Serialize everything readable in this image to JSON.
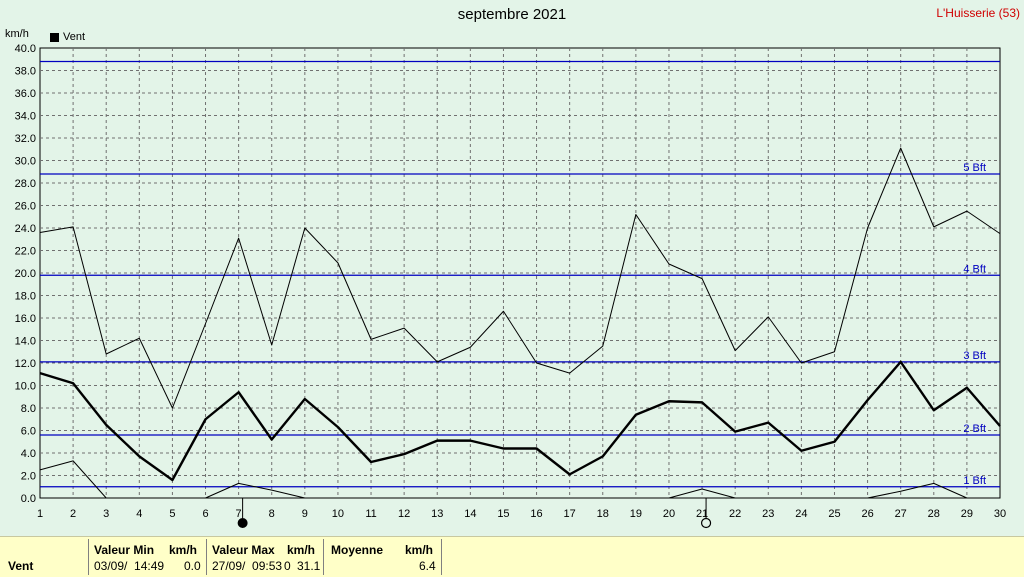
{
  "title": "septembre 2021",
  "station": "L'Huisserie (53)",
  "unit_label": "km/h",
  "legend_label": "Vent",
  "chart_data": {
    "type": "line",
    "title": "septembre 2021",
    "ylabel": "km/h",
    "ylim": [
      0,
      40
    ],
    "xlim": [
      1,
      30
    ],
    "x": [
      1,
      2,
      3,
      4,
      5,
      6,
      7,
      8,
      9,
      10,
      11,
      12,
      13,
      14,
      15,
      16,
      17,
      18,
      19,
      20,
      21,
      22,
      23,
      24,
      25,
      26,
      27,
      28,
      29,
      30
    ],
    "y_ticks": [
      "0.0",
      "2.0",
      "4.0",
      "6.0",
      "8.0",
      "10.0",
      "12.0",
      "14.0",
      "16.0",
      "18.0",
      "20.0",
      "22.0",
      "24.0",
      "26.0",
      "28.0",
      "30.0",
      "32.0",
      "34.0",
      "36.0",
      "38.0",
      "40.0"
    ],
    "x_ticks": [
      "1",
      "2",
      "3",
      "4",
      "5",
      "6",
      "7",
      "8",
      "9",
      "10",
      "11",
      "12",
      "13",
      "14",
      "15",
      "16",
      "17",
      "18",
      "19",
      "20",
      "21",
      "22",
      "23",
      "24",
      "25",
      "26",
      "27",
      "28",
      "29",
      "30"
    ],
    "series": [
      {
        "name": "Vent",
        "style": "bold",
        "values": [
          11.1,
          10.2,
          6.5,
          3.7,
          1.6,
          7.0,
          9.4,
          5.2,
          8.8,
          6.3,
          3.2,
          3.9,
          5.1,
          5.1,
          4.4,
          4.4,
          2.1,
          3.7,
          7.4,
          8.6,
          8.5,
          5.9,
          6.7,
          4.2,
          5.0,
          8.7,
          12.1,
          7.8,
          9.8,
          6.4
        ]
      },
      {
        "name": "",
        "style": "thin",
        "values": [
          23.6,
          24.1,
          12.8,
          14.2,
          8.0,
          15.5,
          23.1,
          13.6,
          24.0,
          20.9,
          14.1,
          15.1,
          12.1,
          13.4,
          16.6,
          12.0,
          11.1,
          13.5,
          25.2,
          20.8,
          19.5,
          13.1,
          16.1,
          12.0,
          13.0,
          24.0,
          31.1,
          24.1,
          25.5,
          23.5
        ]
      },
      {
        "name": "",
        "style": "thin",
        "values": [
          2.5,
          3.3,
          0.0,
          null,
          null,
          0.0,
          1.3,
          0.7,
          0.0,
          null,
          null,
          null,
          null,
          null,
          null,
          null,
          null,
          null,
          null,
          0.0,
          0.8,
          0.0,
          null,
          null,
          null,
          0.0,
          0.6,
          1.3,
          0.0,
          null
        ]
      }
    ],
    "reference_lines": [
      {
        "label": "1 Bft",
        "value": 1.0
      },
      {
        "label": "2 Bft",
        "value": 5.6
      },
      {
        "label": "3 Bft",
        "value": 12.1
      },
      {
        "label": "4 Bft",
        "value": 19.8
      },
      {
        "label": "5 Bft",
        "value": 28.8
      },
      {
        "label": "",
        "value": 38.8
      }
    ],
    "moon_phases": [
      {
        "day": 7,
        "phase": "new-moon"
      },
      {
        "day": 21,
        "phase": "full-moon"
      }
    ],
    "grid": true,
    "line_color": "#000000",
    "reference_color": "#0000c0"
  },
  "stats": {
    "row_label": "Vent",
    "min_header": "Valeur Min",
    "min_unit": "km/h",
    "min_time": "03/09/  14:49",
    "min_value": "0.0",
    "max_header": "Valeur Max",
    "max_unit": "km/h",
    "max_time": "27/09/  09:53",
    "max_value": "31.1",
    "max_obscured": "0",
    "avg_header": "Moyenne",
    "avg_unit": "km/h",
    "avg_value": "6.4"
  }
}
